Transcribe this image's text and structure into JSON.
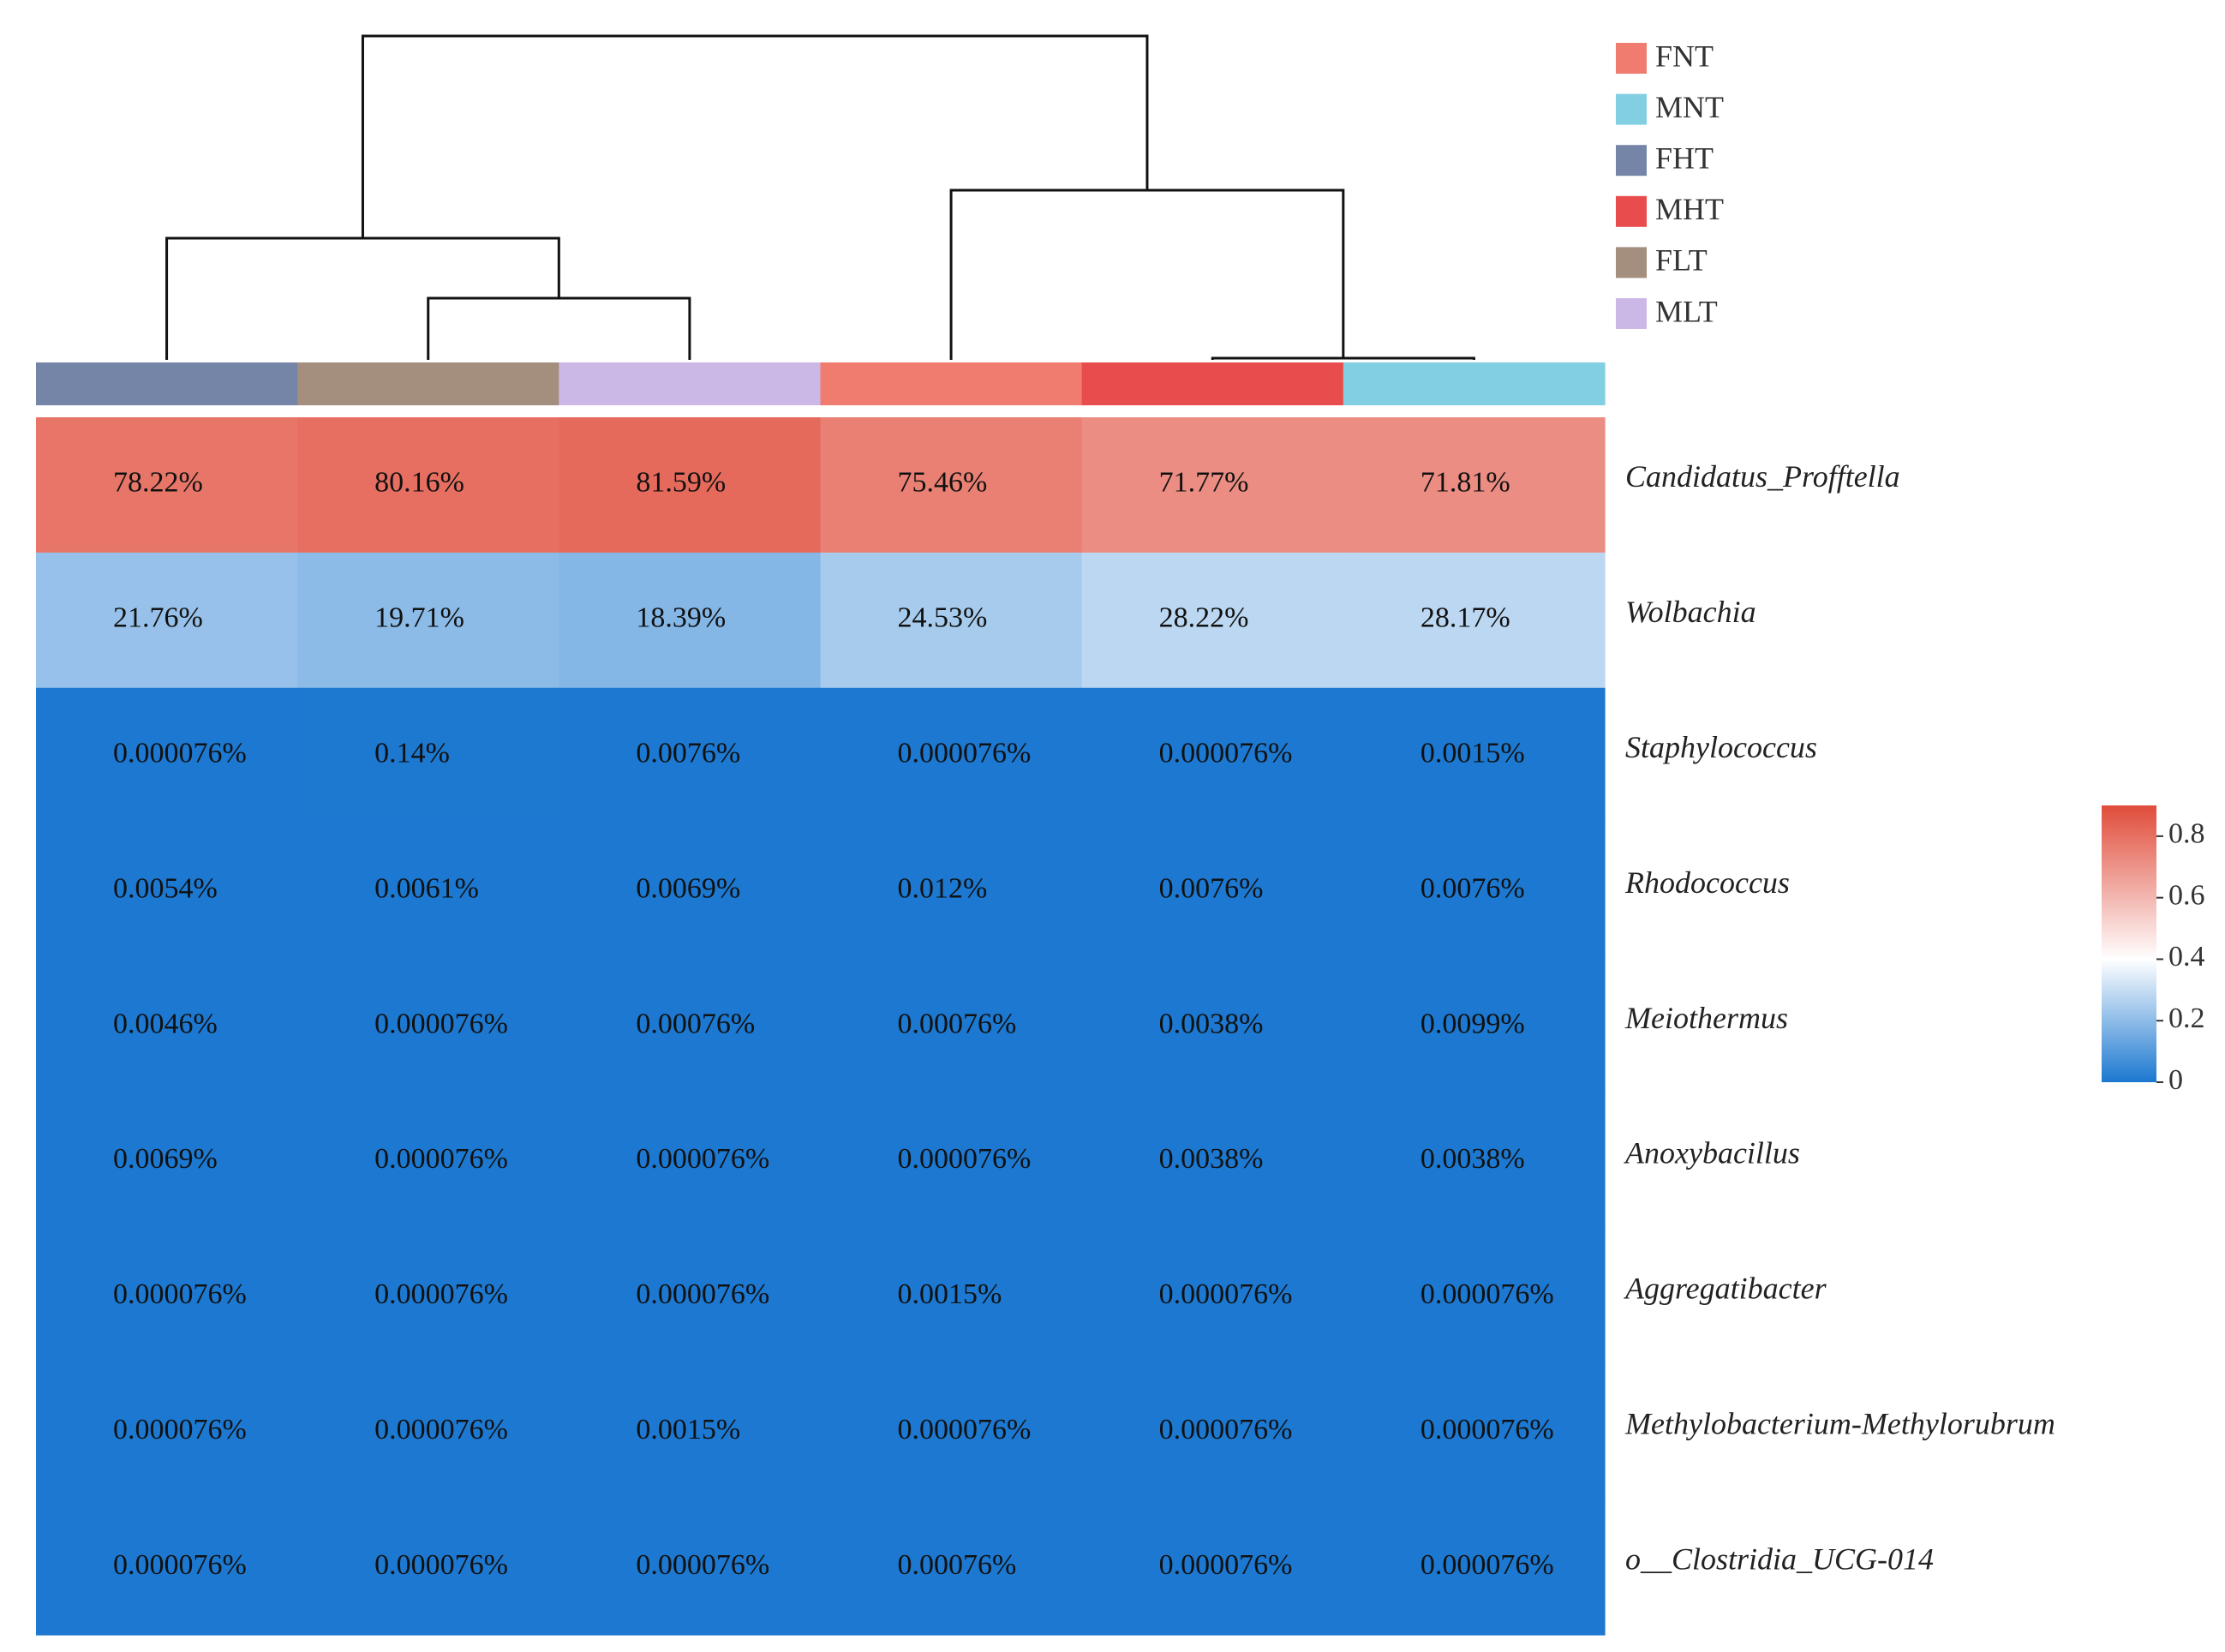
{
  "chart_data": {
    "type": "heatmap",
    "title": "",
    "columns": [
      "FHT",
      "FLT",
      "MLT",
      "FNT",
      "MHT",
      "MNT"
    ],
    "rows": [
      "Candidatus_Profftella",
      "Wolbachia",
      "Staphylococcus",
      "Rhodococcus",
      "Meiothermus",
      "Anoxybacillus",
      "Aggregatibacter",
      "Methylobacterium-Methylorubrum",
      "o__Clostridia_UCG-014"
    ],
    "values": [
      [
        0.7822,
        0.8016,
        0.8159,
        0.7546,
        0.7177,
        0.7181
      ],
      [
        0.2176,
        0.1971,
        0.1839,
        0.2453,
        0.2822,
        0.2817
      ],
      [
        7.6e-07,
        0.0014,
        7.6e-05,
        7.6e-07,
        7.6e-07,
        1.5e-05
      ],
      [
        5.4e-05,
        6.1e-05,
        6.9e-05,
        0.00012,
        7.6e-05,
        7.6e-05
      ],
      [
        4.6e-05,
        7.6e-07,
        7.6e-06,
        7.6e-06,
        3.8e-05,
        9.9e-05
      ],
      [
        6.9e-05,
        7.6e-07,
        7.6e-07,
        7.6e-07,
        3.8e-05,
        3.8e-05
      ],
      [
        7.6e-07,
        7.6e-07,
        7.6e-07,
        1.5e-05,
        7.6e-07,
        7.6e-07
      ],
      [
        7.6e-07,
        7.6e-07,
        1.5e-05,
        7.6e-07,
        7.6e-07,
        7.6e-07
      ],
      [
        7.6e-07,
        7.6e-07,
        7.6e-07,
        7.6e-06,
        7.6e-07,
        7.6e-07
      ]
    ],
    "cell_labels": [
      [
        "78.22%",
        "80.16%",
        "81.59%",
        "75.46%",
        "71.77%",
        "71.81%"
      ],
      [
        "21.76%",
        "19.71%",
        "18.39%",
        "24.53%",
        "28.22%",
        "28.17%"
      ],
      [
        "0.000076%",
        "0.14%",
        "0.0076%",
        "0.000076%",
        "0.000076%",
        "0.0015%"
      ],
      [
        "0.0054%",
        "0.0061%",
        "0.0069%",
        "0.012%",
        "0.0076%",
        "0.0076%"
      ],
      [
        "0.0046%",
        "0.000076%",
        "0.00076%",
        "0.00076%",
        "0.0038%",
        "0.0099%"
      ],
      [
        "0.0069%",
        "0.000076%",
        "0.000076%",
        "0.000076%",
        "0.0038%",
        "0.0038%"
      ],
      [
        "0.000076%",
        "0.000076%",
        "0.000076%",
        "0.0015%",
        "0.000076%",
        "0.000076%"
      ],
      [
        "0.000076%",
        "0.000076%",
        "0.0015%",
        "0.000076%",
        "0.000076%",
        "0.000076%"
      ],
      [
        "0.000076%",
        "0.000076%",
        "0.000076%",
        "0.00076%",
        "0.000076%",
        "0.000076%"
      ]
    ],
    "color_scale": {
      "range": [
        0,
        0.9
      ],
      "ticks": [
        0,
        0.2,
        0.4,
        0.6,
        0.8
      ],
      "tick_labels": [
        "0",
        "0.2",
        "0.4",
        "0.6",
        "0.8"
      ],
      "stops": [
        {
          "value": 0,
          "color": "#1c78d0"
        },
        {
          "value": 0.4,
          "color": "#ffffff"
        },
        {
          "value": 0.9,
          "color": "#e04c3a"
        }
      ]
    },
    "groups": [
      {
        "name": "FNT",
        "color": "#f07c70"
      },
      {
        "name": "MNT",
        "color": "#82cfe2"
      },
      {
        "name": "FHT",
        "color": "#7585a8"
      },
      {
        "name": "MHT",
        "color": "#e84c4c"
      },
      {
        "name": "FLT",
        "color": "#a48e7e"
      },
      {
        "name": "MLT",
        "color": "#cbb8e6"
      }
    ],
    "dendrogram": "((FHT,(FLT,MLT)),(FNT,(MHT,MNT)))",
    "legend_position": "top-right",
    "colorbar_position": "right"
  }
}
